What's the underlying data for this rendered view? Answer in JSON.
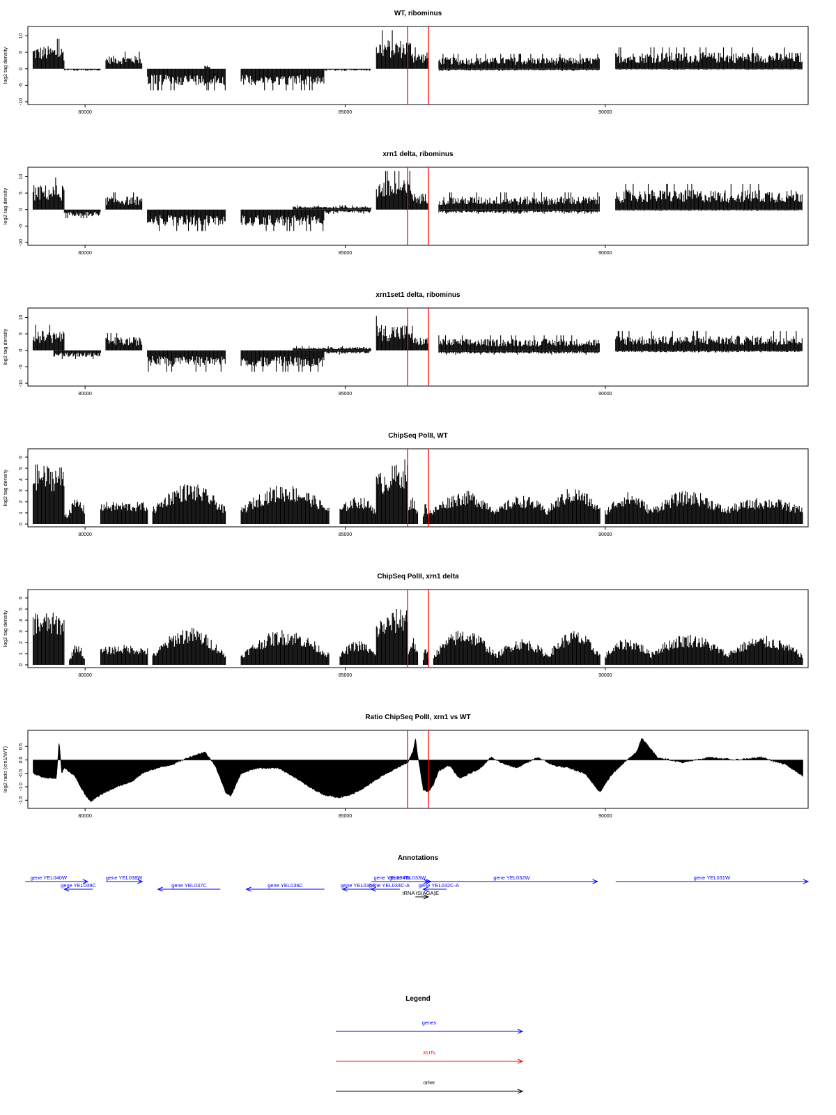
{
  "colors": {
    "gene": "#0000ff",
    "xut": "#ff0000",
    "other": "#000000",
    "marker": "#ff0000",
    "signal": "#000000"
  },
  "chart_data": [
    {
      "type": "area",
      "title": "WT, ribominus",
      "ylabel": "log2 tag density",
      "xlim": [
        78900,
        93900
      ],
      "ylim": [
        -10,
        12
      ],
      "xticks": [
        80000,
        85000,
        90000
      ],
      "yticks": [
        -10,
        -5,
        0,
        5,
        10
      ],
      "xticklabels": [
        "80000",
        "85000",
        "90000"
      ],
      "yticklabels": [
        "-10",
        "-5",
        "0",
        "5",
        "10"
      ],
      "markers": [
        86200,
        86600
      ],
      "series": [
        {
          "strand": "plus",
          "segments": [
            [
              79000,
              79600,
              7
            ],
            [
              80400,
              81100,
              4
            ],
            [
              82300,
              82400,
              1
            ],
            [
              85600,
              86300,
              9
            ],
            [
              86300,
              86600,
              5
            ],
            [
              86800,
              89900,
              3.5
            ],
            [
              90200,
              93800,
              5
            ]
          ]
        },
        {
          "strand": "minus",
          "segments": [
            [
              79600,
              80300,
              -0.5
            ],
            [
              81200,
              82700,
              -5
            ],
            [
              83000,
              84600,
              -5
            ],
            [
              84600,
              85500,
              -0.5
            ],
            [
              86800,
              89900,
              -0.5
            ],
            [
              90200,
              93800,
              -0.2
            ]
          ]
        }
      ]
    },
    {
      "type": "area",
      "title": "xrn1 delta, ribominus",
      "ylabel": "log2 tag density",
      "xlim": [
        78900,
        93900
      ],
      "ylim": [
        -10,
        12
      ],
      "xticks": [
        80000,
        85000,
        90000
      ],
      "yticks": [
        -10,
        -5,
        0,
        5,
        10
      ],
      "xticklabels": [
        "80000",
        "85000",
        "90000"
      ],
      "yticklabels": [
        "-10",
        "-5",
        "0",
        "5",
        "10"
      ],
      "markers": [
        86200,
        86600
      ],
      "series": [
        {
          "strand": "plus",
          "segments": [
            [
              79000,
              79600,
              7.5
            ],
            [
              80400,
              81100,
              4
            ],
            [
              84000,
              85500,
              1
            ],
            [
              85600,
              86300,
              9
            ],
            [
              86300,
              86600,
              5
            ],
            [
              86800,
              89900,
              4
            ],
            [
              90200,
              93800,
              6
            ]
          ]
        },
        {
          "strand": "minus",
          "segments": [
            [
              79600,
              80300,
              -2
            ],
            [
              81200,
              82700,
              -5
            ],
            [
              83000,
              84600,
              -5
            ],
            [
              84600,
              85500,
              -1
            ],
            [
              86800,
              89900,
              -1
            ],
            [
              90200,
              93800,
              -0.3
            ]
          ]
        }
      ]
    },
    {
      "type": "area",
      "title": "xrn1set1 delta, ribominus",
      "ylabel": "log2 tag density",
      "xlim": [
        78900,
        93900
      ],
      "ylim": [
        -10,
        12
      ],
      "xticks": [
        80000,
        85000,
        90000
      ],
      "yticks": [
        -10,
        -5,
        0,
        5,
        10
      ],
      "xticklabels": [
        "80000",
        "85000",
        "90000"
      ],
      "yticklabels": [
        "-10",
        "-5",
        "0",
        "5",
        "10"
      ],
      "markers": [
        86200,
        86600
      ],
      "series": [
        {
          "strand": "plus",
          "segments": [
            [
              79000,
              79600,
              6
            ],
            [
              80400,
              81100,
              4
            ],
            [
              84000,
              85500,
              1
            ],
            [
              85600,
              86300,
              8
            ],
            [
              86300,
              86600,
              4
            ],
            [
              86800,
              89900,
              3.5
            ],
            [
              90200,
              93800,
              4.5
            ]
          ]
        },
        {
          "strand": "minus",
          "segments": [
            [
              79400,
              80300,
              -2
            ],
            [
              81200,
              82700,
              -5
            ],
            [
              83000,
              84600,
              -5
            ],
            [
              84600,
              85500,
              -1
            ],
            [
              86800,
              89900,
              -1
            ],
            [
              90200,
              93800,
              -0.5
            ]
          ]
        }
      ]
    },
    {
      "type": "area",
      "title": "ChipSeq PolII, WT",
      "ylabel": "log2 tag density",
      "xlim": [
        78900,
        93900
      ],
      "ylim": [
        0,
        6.5
      ],
      "xticks": [
        80000,
        85000,
        90000
      ],
      "yticks": [
        0,
        1,
        2,
        3,
        4,
        5,
        6
      ],
      "xticklabels": [
        "80000",
        "85000",
        "90000"
      ],
      "yticklabels": [
        "0",
        "1",
        "2",
        "3",
        "4",
        "5",
        "6"
      ],
      "markers": [
        86200,
        86600
      ],
      "series": [
        {
          "strand": "plus",
          "hump": true,
          "segments": [
            [
              79000,
              79600,
              5.4,
              4.8
            ],
            [
              79600,
              79700,
              1,
              1
            ],
            [
              79700,
              80000,
              2.3,
              1.5
            ],
            [
              80300,
              81200,
              2,
              2
            ],
            [
              81300,
              82700,
              3.7,
              1.5
            ],
            [
              83000,
              84700,
              3.6,
              1.5
            ],
            [
              84900,
              85600,
              2.5,
              1.5
            ],
            [
              85600,
              86200,
              6,
              4.5
            ],
            [
              86200,
              86400,
              2.5,
              1
            ],
            [
              86500,
              86600,
              2,
              1
            ],
            [
              86600,
              86700,
              1.5,
              1
            ],
            [
              86700,
              87900,
              3,
              1.5
            ],
            [
              87900,
              88900,
              2.6,
              1.3
            ],
            [
              88900,
              89900,
              3.3,
              1.5
            ],
            [
              90000,
              90900,
              2.9,
              1.3
            ],
            [
              90900,
              92300,
              3,
              1.5
            ],
            [
              92300,
              93800,
              2.4,
              1.5
            ]
          ]
        }
      ]
    },
    {
      "type": "area",
      "title": "ChipSeq PolII, xrn1 delta",
      "ylabel": "log2 tag density",
      "xlim": [
        78900,
        93900
      ],
      "ylim": [
        0,
        6.5
      ],
      "xticks": [
        80000,
        85000,
        90000
      ],
      "yticks": [
        0,
        1,
        2,
        3,
        4,
        5,
        6
      ],
      "xticklabels": [
        "80000",
        "85000",
        "90000"
      ],
      "yticklabels": [
        "0",
        "1",
        "2",
        "3",
        "4",
        "5",
        "6"
      ],
      "markers": [
        86200,
        86600
      ],
      "series": [
        {
          "strand": "plus",
          "hump": true,
          "segments": [
            [
              79000,
              79600,
              4.8,
              4
            ],
            [
              79700,
              80000,
              2,
              0.5
            ],
            [
              80300,
              81200,
              1.8,
              1.5
            ],
            [
              81300,
              82700,
              3.4,
              1
            ],
            [
              83000,
              84700,
              3.2,
              1
            ],
            [
              84900,
              85600,
              2.2,
              1
            ],
            [
              85600,
              86200,
              5.6,
              4
            ],
            [
              86200,
              86400,
              2.5,
              1
            ],
            [
              86500,
              86600,
              1.8,
              0.5
            ],
            [
              86700,
              87900,
              3.3,
              1
            ],
            [
              87900,
              88900,
              2.4,
              1
            ],
            [
              88900,
              89900,
              3.1,
              1
            ],
            [
              90000,
              90900,
              2.4,
              1
            ],
            [
              90900,
              92300,
              2.8,
              1.3
            ],
            [
              92300,
              93800,
              2.6,
              1
            ]
          ]
        }
      ]
    },
    {
      "type": "area",
      "title": "Ratio ChipSeq PolII, xrn1 vs WT",
      "ylabel": "log2 ratio (xrn1/WT)",
      "xlim": [
        78900,
        93900
      ],
      "ylim": [
        -1.7,
        1.0
      ],
      "xticks": [
        80000,
        85000,
        90000
      ],
      "yticks": [
        -1.5,
        -1.0,
        -0.5,
        0.0,
        0.5
      ],
      "xticklabels": [
        "80000",
        "85000",
        "90000"
      ],
      "yticklabels": [
        "-1.5",
        "-1.0",
        "-0.5",
        "0.0",
        "0.5"
      ],
      "markers": [
        86200,
        86600
      ],
      "series": [
        {
          "strand": "signed",
          "x": [
            79000,
            79200,
            79450,
            79500,
            79550,
            79600,
            79800,
            80000,
            80100,
            80300,
            80600,
            80900,
            81100,
            81300,
            81700,
            82000,
            82300,
            82500,
            82700,
            82800,
            83000,
            83300,
            83700,
            84000,
            84300,
            84600,
            84900,
            85100,
            85400,
            85700,
            86000,
            86200,
            86300,
            86350,
            86400,
            86500,
            86600,
            86700,
            86800,
            87000,
            87200,
            87600,
            87800,
            88000,
            88300,
            88700,
            89000,
            89300,
            89600,
            89900,
            90100,
            90300,
            90600,
            90700,
            90800,
            91000,
            91500,
            92000,
            92500,
            93000,
            93500,
            93800
          ],
          "y": [
            -0.5,
            -0.65,
            -0.7,
            0.75,
            -0.5,
            -0.3,
            -0.6,
            -1.3,
            -1.55,
            -1.3,
            -1.0,
            -0.8,
            -0.5,
            -0.35,
            -0.15,
            0.1,
            0.3,
            -0.2,
            -1.2,
            -1.35,
            -0.5,
            -0.3,
            -0.3,
            -0.6,
            -1.0,
            -1.3,
            -1.4,
            -1.3,
            -1.0,
            -0.6,
            -0.3,
            -0.1,
            0.3,
            0.8,
            0.1,
            -1.1,
            -1.2,
            -0.9,
            -0.4,
            -0.2,
            -0.7,
            -0.3,
            0.1,
            -0.1,
            -0.3,
            0.1,
            -0.2,
            -0.3,
            -0.5,
            -1.2,
            -0.6,
            -0.2,
            0.3,
            0.8,
            0.6,
            0.1,
            -0.1,
            0.1,
            0.0,
            0.1,
            -0.2,
            -0.6
          ]
        }
      ]
    }
  ],
  "annotations": {
    "title": "Annotations",
    "xlim": [
      78900,
      93900
    ],
    "features": [
      {
        "label": "gene YEL040W",
        "kind": "gene",
        "strand": "+",
        "start": 78850,
        "end": 80050,
        "row": 1,
        "labelx": 79300
      },
      {
        "label": "gene YEL039C",
        "kind": "gene",
        "strand": "-",
        "start": 79600,
        "end": 80150,
        "row": 2,
        "labelx": 79870
      },
      {
        "label": "gene YEL038W",
        "kind": "gene",
        "strand": "+",
        "start": 80400,
        "end": 81100,
        "row": 1,
        "labelx": 80750
      },
      {
        "label": "gene YEL037C",
        "kind": "gene",
        "strand": "-",
        "start": 81400,
        "end": 82600,
        "row": 2,
        "labelx": 82000
      },
      {
        "label": "gene YEL036C",
        "kind": "gene",
        "strand": "-",
        "start": 83100,
        "end": 84600,
        "row": 2,
        "labelx": 83850
      },
      {
        "label": "gene YEL035C",
        "kind": "gene",
        "strand": "-",
        "start": 84950,
        "end": 85550,
        "row": 2,
        "labelx": 85250
      },
      {
        "label": "gene YEL034W",
        "kind": "gene",
        "strand": "+",
        "start": 85500,
        "end": 86600,
        "row": 1,
        "labelx": 85900
      },
      {
        "label": "gene YEL034C-A",
        "kind": "gene",
        "strand": "-",
        "start": 85500,
        "end": 86050,
        "row": 2,
        "labelx": 85850
      },
      {
        "label": "gene YEL033W",
        "kind": "gene",
        "strand": "+",
        "start": 85950,
        "end": 86650,
        "row": 1,
        "labelx": 86200
      },
      {
        "label": "gene YEL032C-A",
        "kind": "gene",
        "strand": "-",
        "start": 86500,
        "end": 86950,
        "row": 2,
        "labelx": 86800
      },
      {
        "label": "gene YEL032W",
        "kind": "gene",
        "strand": "+",
        "start": 86600,
        "end": 89850,
        "row": 1,
        "labelx": 88200
      },
      {
        "label": "gene YEL031W",
        "kind": "gene",
        "strand": "+",
        "start": 90200,
        "end": 93900,
        "row": 1,
        "labelx": 92050
      },
      {
        "label": "tRNA tS(AGA)E",
        "kind": "other",
        "strand": "+",
        "start": 86350,
        "end": 86600,
        "row": 3,
        "labelx": 86450
      }
    ]
  },
  "legend": {
    "title": "Legend",
    "items": [
      {
        "label": "genes",
        "kind": "gene"
      },
      {
        "label": "XUTs",
        "kind": "xut"
      },
      {
        "label": "other",
        "kind": "other"
      }
    ]
  }
}
